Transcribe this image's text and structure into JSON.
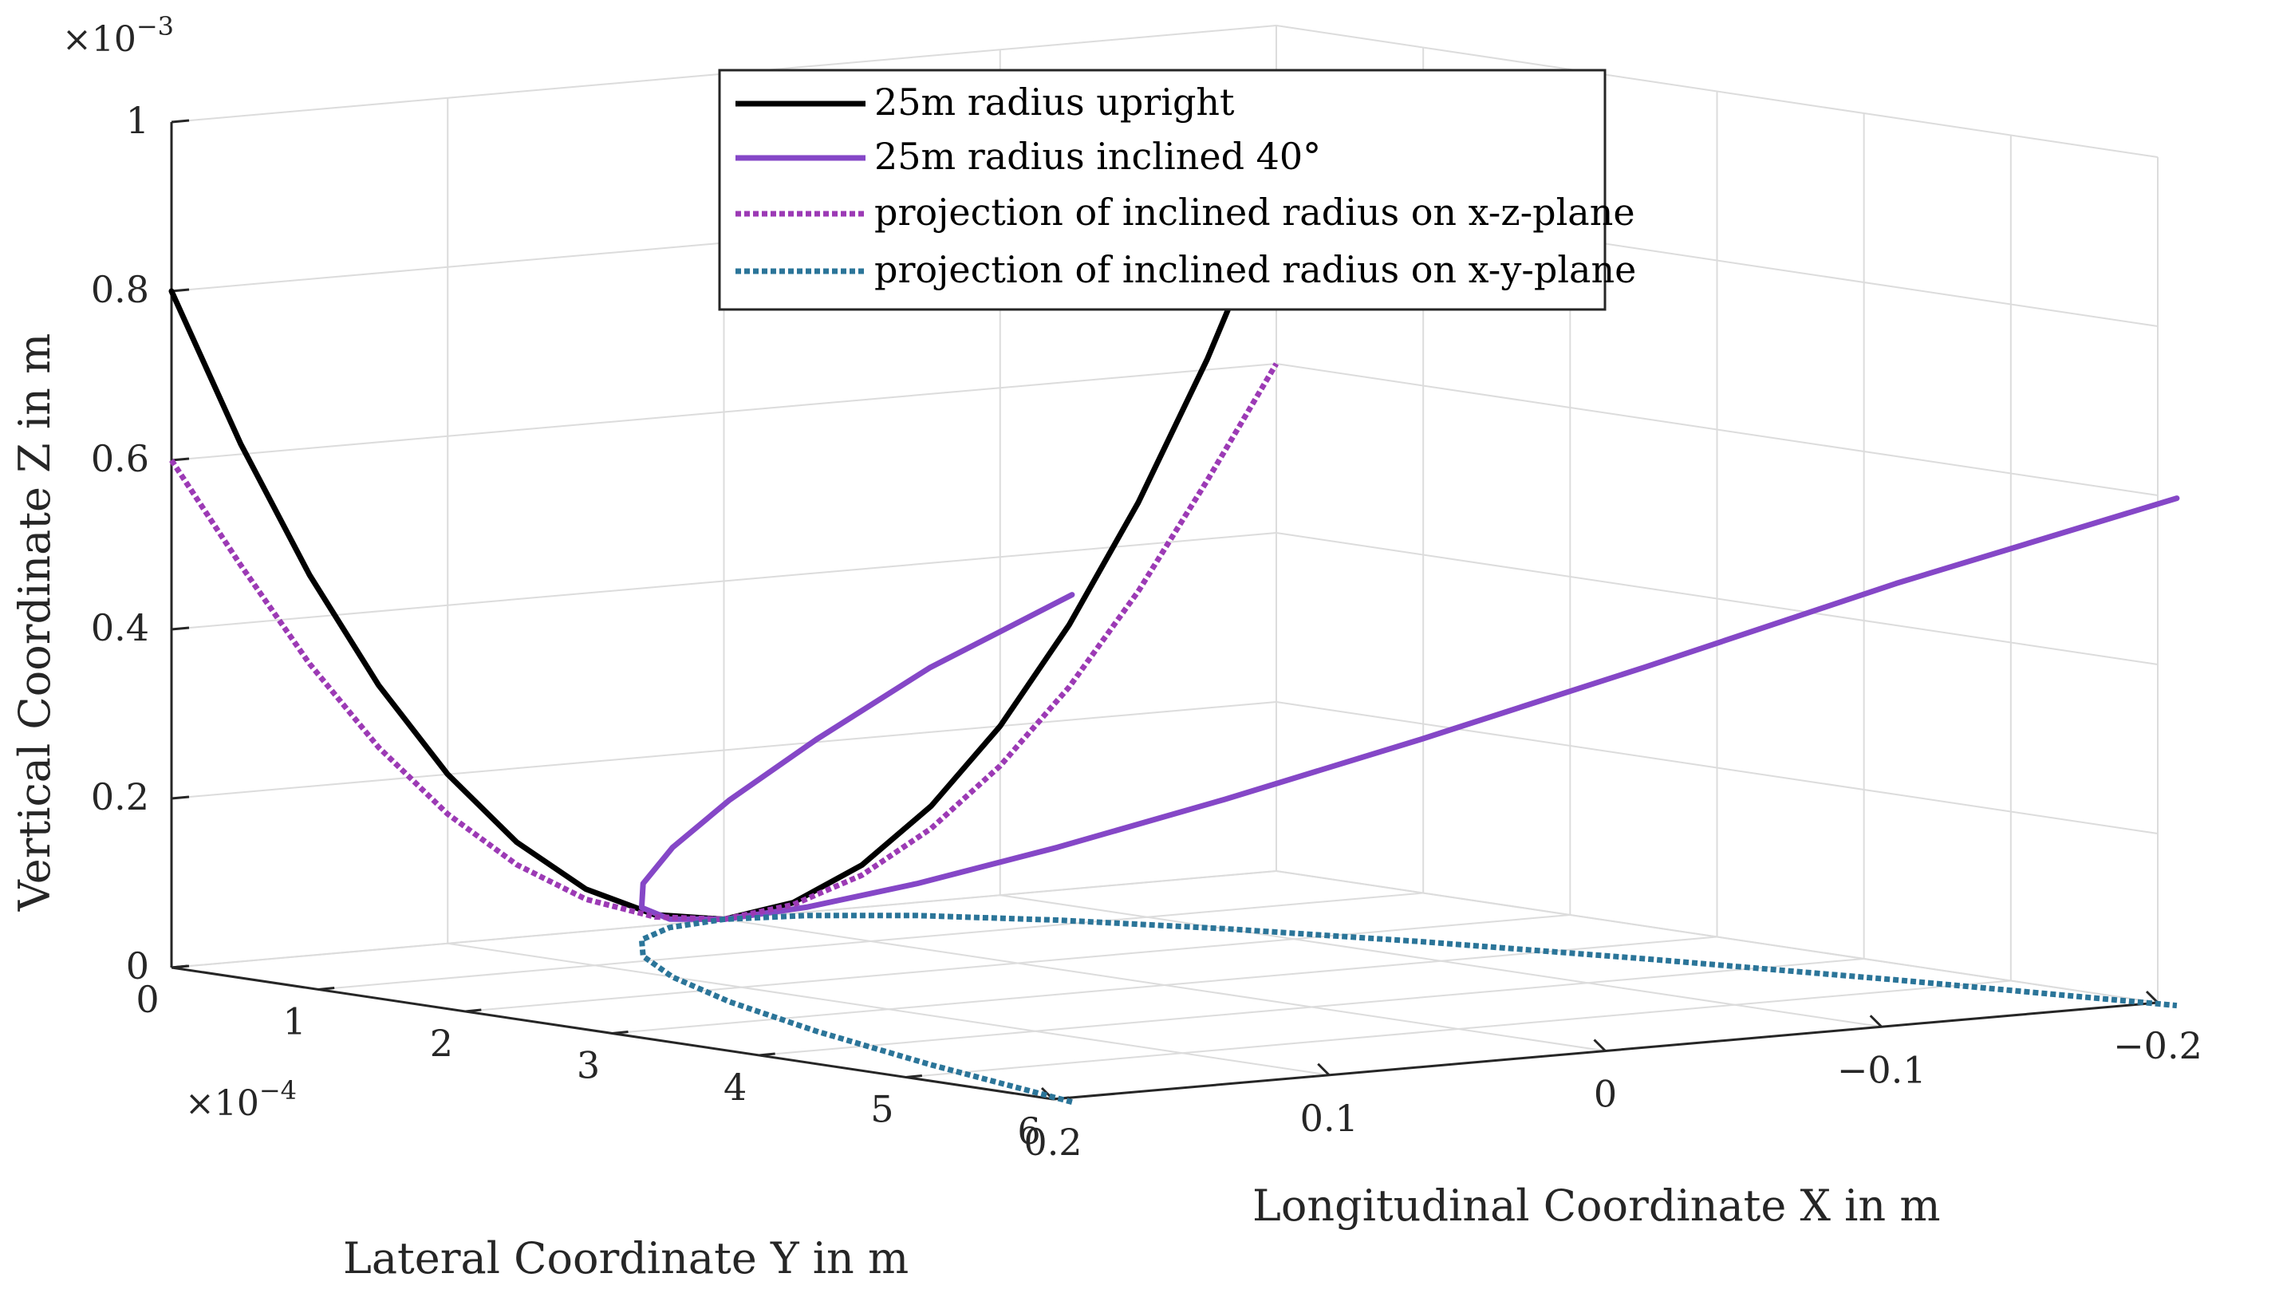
{
  "chart_data": {
    "type": "line",
    "subtype": "3d-line",
    "title": "",
    "xlabel": "Longitudinal Coordinate X in m",
    "ylabel": "Lateral Coordinate Y in m",
    "zlabel": "Vertical Coordinate Z in m",
    "xlim": [
      -0.2,
      0.2
    ],
    "ylim": [
      0,
      6
    ],
    "zlim": [
      0,
      1
    ],
    "x_ticks": [
      {
        "value": 0.2,
        "label": "0.2"
      },
      {
        "value": 0.1,
        "label": "0.1"
      },
      {
        "value": 0,
        "label": "0"
      },
      {
        "value": -0.1,
        "label": "−0.1"
      },
      {
        "value": -0.2,
        "label": "−0.2"
      }
    ],
    "y_ticks": [
      {
        "value": 0,
        "label": "0"
      },
      {
        "value": 1,
        "label": "1"
      },
      {
        "value": 2,
        "label": "2"
      },
      {
        "value": 3,
        "label": "3"
      },
      {
        "value": 4,
        "label": "4"
      },
      {
        "value": 5,
        "label": "5"
      },
      {
        "value": 6,
        "label": "6"
      }
    ],
    "z_ticks": [
      {
        "value": 0,
        "label": "0"
      },
      {
        "value": 0.2,
        "label": "0.2"
      },
      {
        "value": 0.4,
        "label": "0.4"
      },
      {
        "value": 0.6,
        "label": "0.6"
      },
      {
        "value": 0.8,
        "label": "0.8"
      },
      {
        "value": 1,
        "label": "1"
      }
    ],
    "y_exponent": {
      "base": "×10",
      "power": "−4"
    },
    "z_exponent": {
      "base": "×10",
      "power": "−3"
    },
    "grid": true,
    "legend_position": "top-center",
    "series": [
      {
        "name": "25m radius upright",
        "color": "#000000",
        "style": "solid",
        "x": [
          0.2,
          0.175,
          0.15,
          0.125,
          0.1,
          0.075,
          0.05,
          0.025,
          0,
          -0.025,
          -0.05,
          -0.075,
          -0.1,
          -0.125,
          -0.15,
          -0.175,
          -0.2
        ],
        "y": [
          0,
          0,
          0,
          0,
          0,
          0,
          0,
          0,
          0,
          0,
          0,
          0,
          0,
          0,
          0,
          0,
          0
        ],
        "z": [
          0.8,
          0.6125,
          0.45,
          0.3125,
          0.2,
          0.1125,
          0.05,
          0.0125,
          0,
          0.0125,
          0.05,
          0.1125,
          0.2,
          0.3125,
          0.45,
          0.6125,
          0.8
        ]
      },
      {
        "name": "25m radius inclined 40°",
        "color": "#8547c7",
        "style": "solid",
        "x": [
          0.2,
          0.175,
          0.15,
          0.125,
          0.1,
          0.075,
          0.05,
          0.025,
          0,
          -0.025,
          -0.05,
          -0.075,
          -0.1,
          -0.125,
          -0.15,
          -0.175,
          -0.2
        ],
        "y": [
          6.13,
          4.69,
          3.45,
          2.39,
          1.53,
          0.86,
          0.38,
          0.1,
          0,
          0.1,
          0.38,
          0.86,
          1.53,
          2.39,
          3.45,
          4.69,
          6.13
        ],
        "z": [
          0.6,
          0.469,
          0.345,
          0.239,
          0.153,
          0.086,
          0.038,
          0.01,
          0,
          0.01,
          0.038,
          0.086,
          0.153,
          0.239,
          0.345,
          0.469,
          0.6
        ]
      },
      {
        "name": "projection of inclined radius on x-z-plane",
        "color": "#9c3ab5",
        "style": "dotted",
        "x": [
          0.2,
          0.175,
          0.15,
          0.125,
          0.1,
          0.075,
          0.05,
          0.025,
          0,
          -0.025,
          -0.05,
          -0.075,
          -0.1,
          -0.125,
          -0.15,
          -0.175,
          -0.2
        ],
        "y": [
          0,
          0,
          0,
          0,
          0,
          0,
          0,
          0,
          0,
          0,
          0,
          0,
          0,
          0,
          0,
          0,
          0
        ],
        "z": [
          0.6,
          0.469,
          0.345,
          0.239,
          0.153,
          0.086,
          0.038,
          0.01,
          0,
          0.01,
          0.038,
          0.086,
          0.153,
          0.239,
          0.345,
          0.469,
          0.6
        ]
      },
      {
        "name": "projection of inclined radius on x-y-plane",
        "color": "#2b7599",
        "style": "dotted",
        "x": [
          0.2,
          0.175,
          0.15,
          0.125,
          0.1,
          0.075,
          0.05,
          0.025,
          0,
          -0.025,
          -0.05,
          -0.075,
          -0.1,
          -0.125,
          -0.15,
          -0.175,
          -0.2
        ],
        "y": [
          6.13,
          4.69,
          3.45,
          2.39,
          1.53,
          0.86,
          0.38,
          0.1,
          0,
          0.1,
          0.38,
          0.86,
          1.53,
          2.39,
          3.45,
          4.69,
          6.13
        ],
        "z": [
          0,
          0,
          0,
          0,
          0,
          0,
          0,
          0,
          0,
          0,
          0,
          0,
          0,
          0,
          0,
          0,
          0
        ]
      }
    ]
  }
}
